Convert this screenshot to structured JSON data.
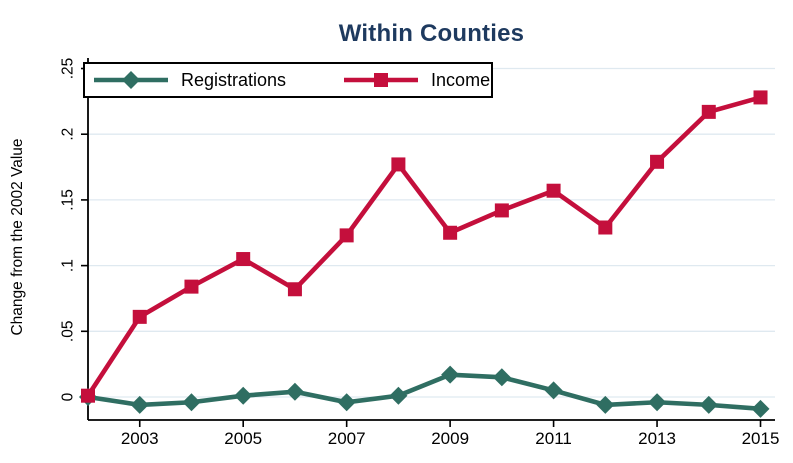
{
  "title": "Within Counties",
  "colors": {
    "title": "#1e3a5f",
    "registrations": "#2f6e62",
    "income": "#c40f3c",
    "grid": "#dfe9f0",
    "axis": "#000000",
    "background": "#ffffff"
  },
  "chart_data": {
    "type": "line",
    "title": "Within Counties",
    "xlabel": "",
    "ylabel": "Change from the 2002 Value",
    "x": [
      2002,
      2003,
      2004,
      2005,
      2006,
      2007,
      2008,
      2009,
      2010,
      2011,
      2012,
      2013,
      2014,
      2015
    ],
    "series": [
      {
        "name": "Registrations",
        "color": "#2f6e62",
        "marker": "diamond",
        "values": [
          0.0,
          -0.006,
          -0.004,
          0.001,
          0.004,
          -0.004,
          0.001,
          0.017,
          0.015,
          0.005,
          -0.006,
          -0.004,
          -0.006,
          -0.009
        ]
      },
      {
        "name": "Income",
        "color": "#c40f3c",
        "marker": "square",
        "values": [
          0.001,
          0.061,
          0.084,
          0.105,
          0.082,
          0.123,
          0.177,
          0.125,
          0.142,
          0.157,
          0.129,
          0.179,
          0.217,
          0.228
        ]
      }
    ],
    "yticks": {
      "values": [
        0,
        0.05,
        0.1,
        0.15,
        0.2,
        0.25
      ],
      "labels": [
        "0",
        ".05",
        ".1",
        ".15",
        ".2",
        ".25"
      ]
    },
    "xticks": [
      2003,
      2005,
      2007,
      2009,
      2011,
      2013,
      2015
    ],
    "xlim": [
      2002,
      2015.28
    ],
    "ylim": [
      -0.0175,
      0.258
    ],
    "grid": true,
    "legend_position": "inside-top-left"
  },
  "legend": {
    "entries": [
      {
        "label": "Registrations"
      },
      {
        "label": "Income"
      }
    ]
  }
}
